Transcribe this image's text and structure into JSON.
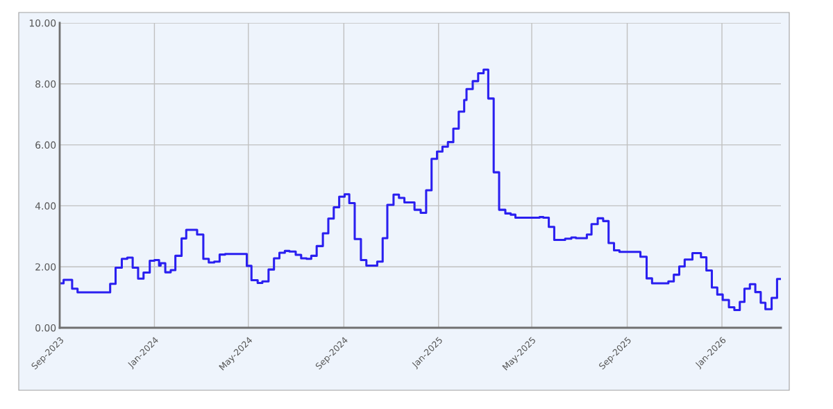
{
  "chart_data": {
    "type": "step",
    "x": [
      "2023-09-01",
      "2023-09-06",
      "2023-09-17",
      "2023-09-24",
      "2023-11-05",
      "2023-11-12",
      "2023-11-20",
      "2023-11-27",
      "2023-12-04",
      "2023-12-11",
      "2023-12-18",
      "2023-12-26",
      "2024-01-01",
      "2024-01-07",
      "2024-01-09",
      "2024-01-15",
      "2024-01-22",
      "2024-01-28",
      "2024-02-05",
      "2024-02-11",
      "2024-02-25",
      "2024-03-04",
      "2024-03-11",
      "2024-03-18",
      "2024-03-25",
      "2024-04-01",
      "2024-04-29",
      "2024-05-05",
      "2024-05-13",
      "2024-05-19",
      "2024-05-27",
      "2024-06-03",
      "2024-06-10",
      "2024-06-17",
      "2024-06-23",
      "2024-07-01",
      "2024-07-08",
      "2024-07-15",
      "2024-07-21",
      "2024-07-28",
      "2024-08-05",
      "2024-08-12",
      "2024-08-19",
      "2024-08-26",
      "2024-09-02",
      "2024-09-08",
      "2024-09-15",
      "2024-09-23",
      "2024-09-30",
      "2024-10-14",
      "2024-10-21",
      "2024-10-27",
      "2024-11-04",
      "2024-11-11",
      "2024-11-18",
      "2024-12-01",
      "2024-12-09",
      "2024-12-16",
      "2024-12-23",
      "2024-12-30",
      "2025-01-06",
      "2025-01-13",
      "2025-01-20",
      "2025-01-27",
      "2025-02-03",
      "2025-02-06",
      "2025-02-14",
      "2025-02-21",
      "2025-02-28",
      "2025-03-06",
      "2025-03-13",
      "2025-03-20",
      "2025-03-28",
      "2025-04-04",
      "2025-04-10",
      "2025-05-11",
      "2025-05-16",
      "2025-05-23",
      "2025-05-30",
      "2025-06-13",
      "2025-06-21",
      "2025-06-27",
      "2025-07-11",
      "2025-07-17",
      "2025-07-25",
      "2025-08-01",
      "2025-08-08",
      "2025-08-15",
      "2025-08-22",
      "2025-09-18",
      "2025-09-26",
      "2025-10-03",
      "2025-10-24",
      "2025-10-31",
      "2025-11-07",
      "2025-11-14",
      "2025-11-24",
      "2025-12-05",
      "2025-12-12",
      "2025-12-19",
      "2025-12-26",
      "2026-01-02",
      "2026-01-10",
      "2026-01-17",
      "2026-01-24",
      "2026-01-30",
      "2026-02-06",
      "2026-02-13",
      "2026-02-20",
      "2026-02-26",
      "2026-03-06",
      "2026-03-13",
      "2026-03-18"
    ],
    "series": [
      {
        "color": "#2a1ff0",
        "values": [
          1.46,
          1.57,
          1.28,
          1.16,
          1.44,
          1.97,
          2.26,
          2.3,
          1.97,
          1.61,
          1.81,
          2.2,
          2.22,
          2.04,
          2.12,
          1.82,
          1.89,
          2.36,
          2.93,
          3.21,
          3.06,
          2.26,
          2.14,
          2.17,
          2.4,
          2.42,
          2.03,
          1.56,
          1.47,
          1.52,
          1.91,
          2.28,
          2.46,
          2.52,
          2.5,
          2.39,
          2.28,
          2.26,
          2.36,
          2.68,
          3.1,
          3.58,
          3.95,
          4.3,
          4.38,
          4.09,
          2.91,
          2.22,
          2.04,
          2.17,
          2.94,
          4.03,
          4.37,
          4.26,
          4.11,
          3.87,
          3.77,
          4.51,
          5.54,
          5.78,
          5.94,
          6.09,
          6.53,
          7.09,
          7.47,
          7.83,
          8.09,
          8.35,
          8.47,
          7.52,
          5.1,
          3.87,
          3.75,
          3.71,
          3.61,
          3.63,
          3.61,
          3.31,
          2.88,
          2.92,
          2.96,
          2.94,
          3.06,
          3.4,
          3.59,
          3.5,
          2.78,
          2.54,
          2.49,
          2.33,
          1.62,
          1.46,
          1.52,
          1.74,
          2.01,
          2.24,
          2.45,
          2.31,
          1.88,
          1.32,
          1.09,
          0.91,
          0.67,
          0.58,
          0.85,
          1.28,
          1.43,
          1.17,
          0.82,
          0.61,
          0.98,
          1.6,
          1.6
        ]
      }
    ],
    "xlim": [
      "2023-09-01",
      "2026-03-18"
    ],
    "xticks": [
      {
        "value": "2023-09-01",
        "label": "Sep-2023"
      },
      {
        "value": "2024-01-01",
        "label": "Jan-2024"
      },
      {
        "value": "2024-05-01",
        "label": "May-2024"
      },
      {
        "value": "2024-09-01",
        "label": "Sep-2024"
      },
      {
        "value": "2025-01-01",
        "label": "Jan-2025"
      },
      {
        "value": "2025-05-01",
        "label": "May-2025"
      },
      {
        "value": "2025-09-01",
        "label": "Sep-2025"
      },
      {
        "value": "2026-01-01",
        "label": "Jan-2026"
      }
    ],
    "ylim": [
      0,
      10
    ],
    "yticks": [
      {
        "value": 0,
        "label": "0.00"
      },
      {
        "value": 2,
        "label": "2.00"
      },
      {
        "value": 4,
        "label": "4.00"
      },
      {
        "value": 6,
        "label": "6.00"
      },
      {
        "value": 8,
        "label": "8.00"
      },
      {
        "value": 10,
        "label": "10.00"
      }
    ],
    "grid": true,
    "marker": "none",
    "line_style": "solid"
  }
}
